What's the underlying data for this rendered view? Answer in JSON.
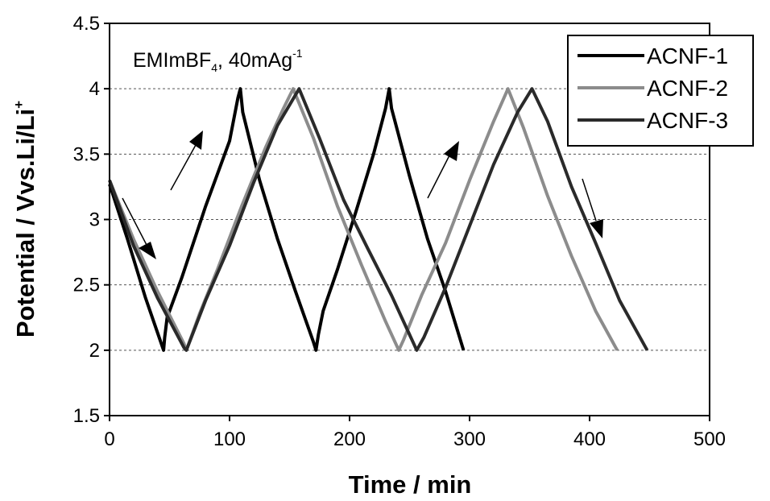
{
  "chart_data": {
    "type": "line",
    "title": "",
    "annotation": {
      "main": "EMImBF",
      "sub": "4",
      "rest": ", 40mAg",
      "sup": "-1"
    },
    "xlabel": "Time / min",
    "ylabel": {
      "main": "Potential / Vvs.Li/Li",
      "sup": "+"
    },
    "xlim": [
      0,
      500
    ],
    "ylim": [
      1.5,
      4.5
    ],
    "xticks": [
      "0",
      "100",
      "200",
      "300",
      "400",
      "500"
    ],
    "yticks": [
      "1.5",
      "2",
      "2.5",
      "3",
      "3.5",
      "4",
      "4.5"
    ],
    "grid": "horizontal-dashed",
    "legend_position": "top-right",
    "series": [
      {
        "name": "ACNF-1",
        "color": "#000000",
        "style": "solid",
        "points": [
          [
            0,
            3.27
          ],
          [
            15,
            2.85
          ],
          [
            30,
            2.4
          ],
          [
            45,
            2.0
          ],
          [
            46,
            2.1
          ],
          [
            48,
            2.25
          ],
          [
            60,
            2.55
          ],
          [
            80,
            3.1
          ],
          [
            100,
            3.6
          ],
          [
            107,
            3.93
          ],
          [
            109,
            4.0
          ],
          [
            111,
            3.82
          ],
          [
            125,
            3.3
          ],
          [
            140,
            2.85
          ],
          [
            155,
            2.45
          ],
          [
            170,
            2.06
          ],
          [
            172,
            2.0
          ],
          [
            174,
            2.12
          ],
          [
            178,
            2.3
          ],
          [
            190,
            2.62
          ],
          [
            205,
            3.05
          ],
          [
            220,
            3.5
          ],
          [
            230,
            3.85
          ],
          [
            233,
            4.0
          ],
          [
            235,
            3.85
          ],
          [
            250,
            3.33
          ],
          [
            265,
            2.85
          ],
          [
            280,
            2.45
          ],
          [
            295,
            2.0
          ]
        ]
      },
      {
        "name": "ACNF-2",
        "color": "#8c8c8c",
        "style": "solid",
        "points": [
          [
            0,
            3.3
          ],
          [
            20,
            2.85
          ],
          [
            40,
            2.45
          ],
          [
            62,
            2.05
          ],
          [
            64,
            2.0
          ],
          [
            75,
            2.28
          ],
          [
            90,
            2.62
          ],
          [
            110,
            3.1
          ],
          [
            130,
            3.55
          ],
          [
            145,
            3.85
          ],
          [
            153,
            4.0
          ],
          [
            170,
            3.62
          ],
          [
            190,
            3.1
          ],
          [
            210,
            2.65
          ],
          [
            230,
            2.22
          ],
          [
            241,
            2.0
          ],
          [
            245,
            2.08
          ],
          [
            260,
            2.42
          ],
          [
            280,
            2.82
          ],
          [
            300,
            3.3
          ],
          [
            320,
            3.75
          ],
          [
            332,
            4.0
          ],
          [
            345,
            3.7
          ],
          [
            365,
            3.18
          ],
          [
            385,
            2.72
          ],
          [
            405,
            2.3
          ],
          [
            423,
            2.0
          ]
        ]
      },
      {
        "name": "ACNF-3",
        "color": "#2a2a2a",
        "style": "solid",
        "points": [
          [
            0,
            3.3
          ],
          [
            20,
            2.8
          ],
          [
            40,
            2.4
          ],
          [
            62,
            2.02
          ],
          [
            64,
            2.0
          ],
          [
            80,
            2.38
          ],
          [
            100,
            2.8
          ],
          [
            120,
            3.28
          ],
          [
            140,
            3.72
          ],
          [
            158,
            4.0
          ],
          [
            175,
            3.62
          ],
          [
            195,
            3.15
          ],
          [
            215,
            2.78
          ],
          [
            235,
            2.42
          ],
          [
            256,
            2.0
          ],
          [
            262,
            2.1
          ],
          [
            280,
            2.48
          ],
          [
            300,
            2.95
          ],
          [
            320,
            3.42
          ],
          [
            340,
            3.82
          ],
          [
            352,
            4.0
          ],
          [
            365,
            3.75
          ],
          [
            385,
            3.25
          ],
          [
            405,
            2.82
          ],
          [
            425,
            2.38
          ],
          [
            448,
            2.0
          ]
        ]
      }
    ]
  }
}
